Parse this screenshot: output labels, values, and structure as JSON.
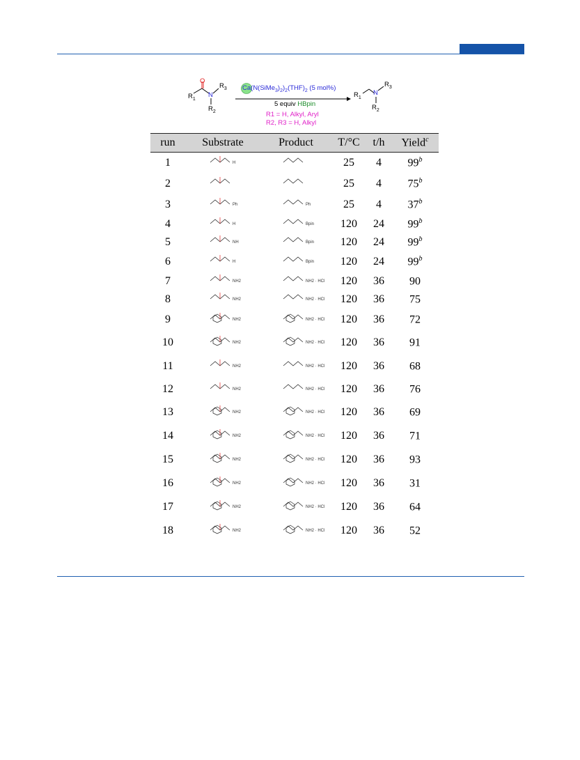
{
  "scheme": {
    "catalyst": "Ca(N(SiMe3)2)2(THF)2 (5 mol%)",
    "catalyst_parts": {
      "ca": "Ca",
      "rest": "(N(SiMe",
      "sub3": "3",
      "mid": ")",
      "sub2a": "2",
      "mid2": "]",
      "sub2b": "2",
      "end": "(THF)",
      "sub2c": "2",
      "tail": " (5 mol%)"
    },
    "reagent_prefix": "5 equiv ",
    "reagent_name": "HBpin",
    "conditions_r1": "R1 = H, Alkyl, Aryl",
    "conditions_r23": "R2, R3 = H, Alkyl",
    "labels": {
      "R1": "R",
      "R2": "R",
      "R3": "R",
      "N": "N",
      "O": "O",
      "s1": "1",
      "s2": "2",
      "s3": "3"
    }
  },
  "table": {
    "headers": {
      "run": "run",
      "substrate": "Substrate",
      "product": "Product",
      "temp": "T/°C",
      "time": "t/h",
      "yield": "Yield",
      "yield_sup": "c"
    },
    "rows": [
      {
        "run": "1",
        "temp": "25",
        "time": "4",
        "yield": "99",
        "sup": "b",
        "sub_label": "H",
        "prod_label": ""
      },
      {
        "run": "2",
        "temp": "25",
        "time": "4",
        "yield": "75",
        "sup": "b",
        "sub_label": "",
        "prod_label": ""
      },
      {
        "run": "3",
        "temp": "25",
        "time": "4",
        "yield": "37",
        "sup": "b",
        "sub_label": "Ph",
        "prod_label": "Ph"
      },
      {
        "run": "4",
        "temp": "120",
        "time": "24",
        "yield": "99",
        "sup": "b",
        "sub_label": "H",
        "prod_label": "Bpin"
      },
      {
        "run": "5",
        "temp": "120",
        "time": "24",
        "yield": "99",
        "sup": "b",
        "sub_label": "NH",
        "prod_label": "Bpin"
      },
      {
        "run": "6",
        "temp": "120",
        "time": "24",
        "yield": "99",
        "sup": "b",
        "sub_label": "H",
        "prod_label": "Bpin"
      },
      {
        "run": "7",
        "temp": "120",
        "time": "36",
        "yield": "90",
        "sup": "",
        "sub_label": "NH2",
        "prod_label": "NH2 · HCl"
      },
      {
        "run": "8",
        "temp": "120",
        "time": "36",
        "yield": "75",
        "sup": "",
        "sub_label": "NH2",
        "prod_label": "NH2 · HCl"
      },
      {
        "run": "9",
        "temp": "120",
        "time": "36",
        "yield": "72",
        "sup": "",
        "sub_label": "NH2",
        "prod_label": "NH2 · HCl"
      },
      {
        "run": "10",
        "temp": "120",
        "time": "36",
        "yield": "91",
        "sup": "",
        "sub_label": "NH2",
        "prod_label": "NH2 · HCl"
      },
      {
        "run": "11",
        "temp": "120",
        "time": "36",
        "yield": "68",
        "sup": "",
        "sub_label": "NH2",
        "prod_label": "NH2 · HCl"
      },
      {
        "run": "12",
        "temp": "120",
        "time": "36",
        "yield": "76",
        "sup": "",
        "sub_label": "NH2",
        "prod_label": "NH2 · HCl"
      },
      {
        "run": "13",
        "temp": "120",
        "time": "36",
        "yield": "69",
        "sup": "",
        "sub_label": "NH2",
        "prod_label": "NH2 · HCl"
      },
      {
        "run": "14",
        "temp": "120",
        "time": "36",
        "yield": "71",
        "sup": "",
        "sub_label": "NH2",
        "prod_label": "NH2 · HCl"
      },
      {
        "run": "15",
        "temp": "120",
        "time": "36",
        "yield": "93",
        "sup": "",
        "sub_label": "NH2",
        "prod_label": "NH2 · HCl"
      },
      {
        "run": "16",
        "temp": "120",
        "time": "36",
        "yield": "31",
        "sup": "",
        "sub_label": "NH2",
        "prod_label": "NH2 · HCl"
      },
      {
        "run": "17",
        "temp": "120",
        "time": "36",
        "yield": "64",
        "sup": "",
        "sub_label": "NH2",
        "prod_label": "NH2 · HCl"
      },
      {
        "run": "18",
        "temp": "120",
        "time": "36",
        "yield": "52",
        "sup": "",
        "sub_label": "NH2",
        "prod_label": "NH2 · HCl"
      }
    ]
  },
  "colors": {
    "accent_blue": "#1553a8",
    "rule_blue": "#1f5fb0",
    "header_gray": "#d4d4d4",
    "scheme_blue": "#2a2ad8",
    "scheme_green": "#1c8c2a",
    "scheme_magenta": "#e020c8"
  }
}
